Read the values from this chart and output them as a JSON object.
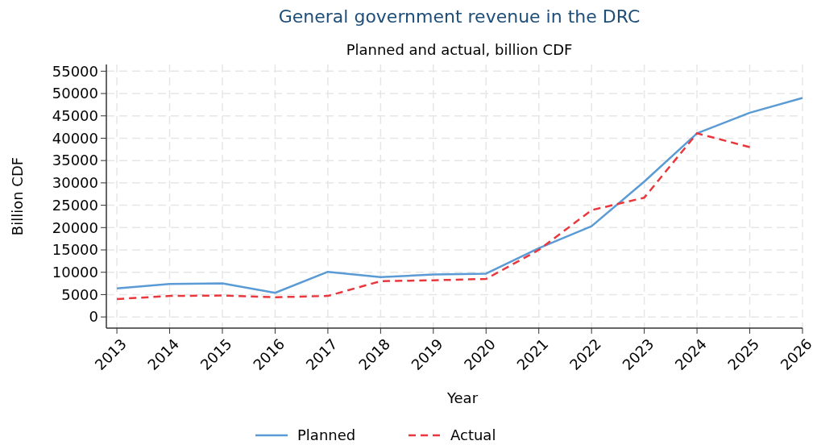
{
  "chart_data": {
    "type": "line",
    "title": "General government revenue in the DRC",
    "subtitle": "Planned and actual, billion CDF",
    "xlabel": "Year",
    "ylabel": "Billion CDF",
    "x": [
      2013,
      2014,
      2015,
      2016,
      2017,
      2018,
      2019,
      2020,
      2021,
      2022,
      2023,
      2024,
      2025,
      2026
    ],
    "series": [
      {
        "name": "Planned",
        "color": "#5b9bd5",
        "line_style": "solid",
        "values": [
          6400,
          7400,
          7500,
          5400,
          10100,
          8900,
          9500,
          9700,
          15400,
          20300,
          30300,
          41100,
          45700,
          49000
        ]
      },
      {
        "name": "Actual",
        "color": "#e8383d",
        "line_style": "dashed",
        "values": [
          4000,
          4700,
          4800,
          4400,
          4700,
          8000,
          8200,
          8500,
          15000,
          23900,
          26700,
          41100,
          38000,
          null
        ]
      }
    ],
    "xlim": [
      2012.8,
      2026
    ],
    "xticks": [
      2013,
      2014,
      2015,
      2016,
      2017,
      2018,
      2019,
      2020,
      2021,
      2022,
      2023,
      2024,
      2025,
      2026
    ],
    "ylim": [
      -2500,
      56500
    ],
    "yticks": [
      0,
      5000,
      10000,
      15000,
      20000,
      25000,
      30000,
      35000,
      40000,
      45000,
      50000,
      55000
    ],
    "grid": true,
    "legend": "bottom",
    "marker": "none"
  }
}
